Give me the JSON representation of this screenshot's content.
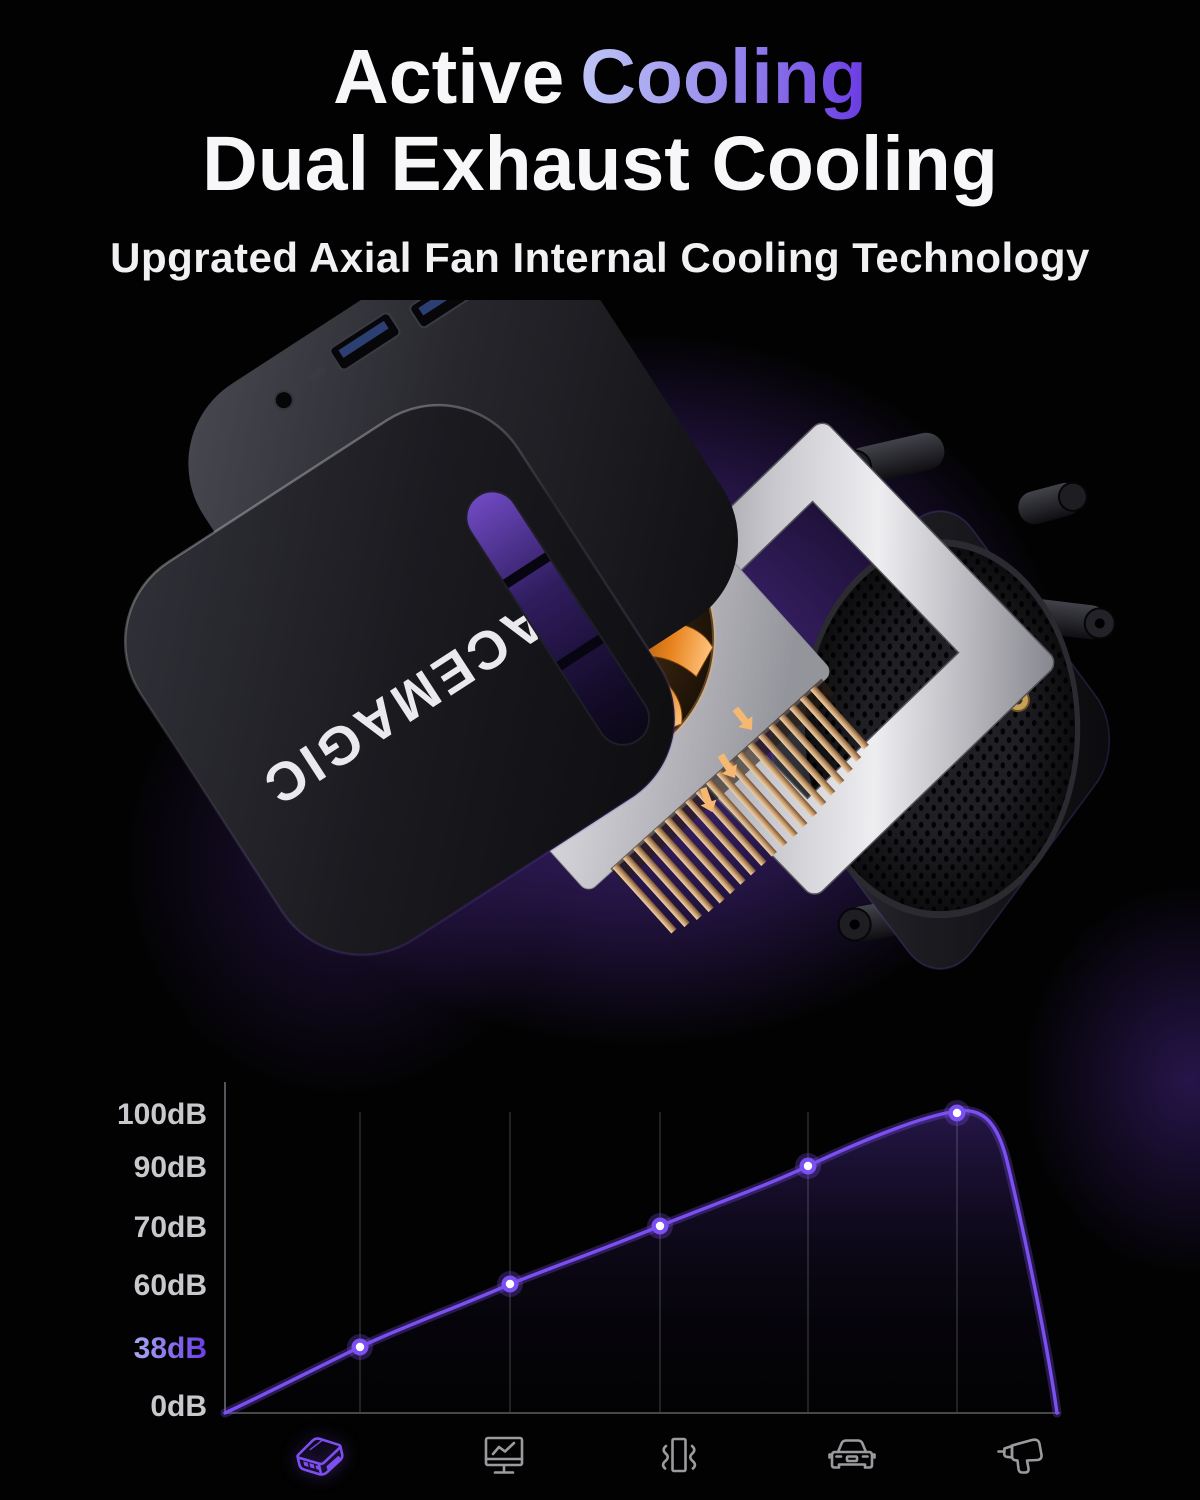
{
  "header": {
    "title_prefix": "Active",
    "title_accent": "Cooling",
    "title_line2": "Dual Exhaust Cooling",
    "subtitle": "Upgrated Axial Fan Internal Cooling Technology"
  },
  "product": {
    "brand_label": "ACEMAGIC"
  },
  "chart_data": {
    "type": "area",
    "title": "",
    "categories": [
      "acemagic-mini-pc",
      "desktop-monitor",
      "vibrating-device",
      "car",
      "electric-drill"
    ],
    "values": [
      38,
      60,
      70,
      90,
      100
    ],
    "unit": "dB",
    "yticks": [
      "100dB",
      "90dB",
      "70dB",
      "60dB",
      "38dB",
      "0dB"
    ],
    "highlighted_tick": "38dB",
    "highlighted_value": 38,
    "ylim": [
      0,
      100
    ],
    "grid": "vertical-only",
    "legend": "none",
    "curve_color": "#7c4ff2",
    "point_style": "white-core-purple-ring"
  },
  "footer_icons": [
    {
      "name": "mini-pc-icon",
      "active": true
    },
    {
      "name": "monitor-icon",
      "active": false
    },
    {
      "name": "vibration-icon",
      "active": false
    },
    {
      "name": "car-icon",
      "active": false
    },
    {
      "name": "drill-icon",
      "active": false
    }
  ],
  "colors": {
    "background": "#020202",
    "accent": "#7d4ff0",
    "icon_inactive": "#9b9b9f",
    "title_gradient_start": "#bec6f5",
    "title_gradient_end": "#6939e2",
    "glow_purple": "#542f98",
    "fan_orange": "#e8831e",
    "tick_gray": "#c9c9cd"
  }
}
